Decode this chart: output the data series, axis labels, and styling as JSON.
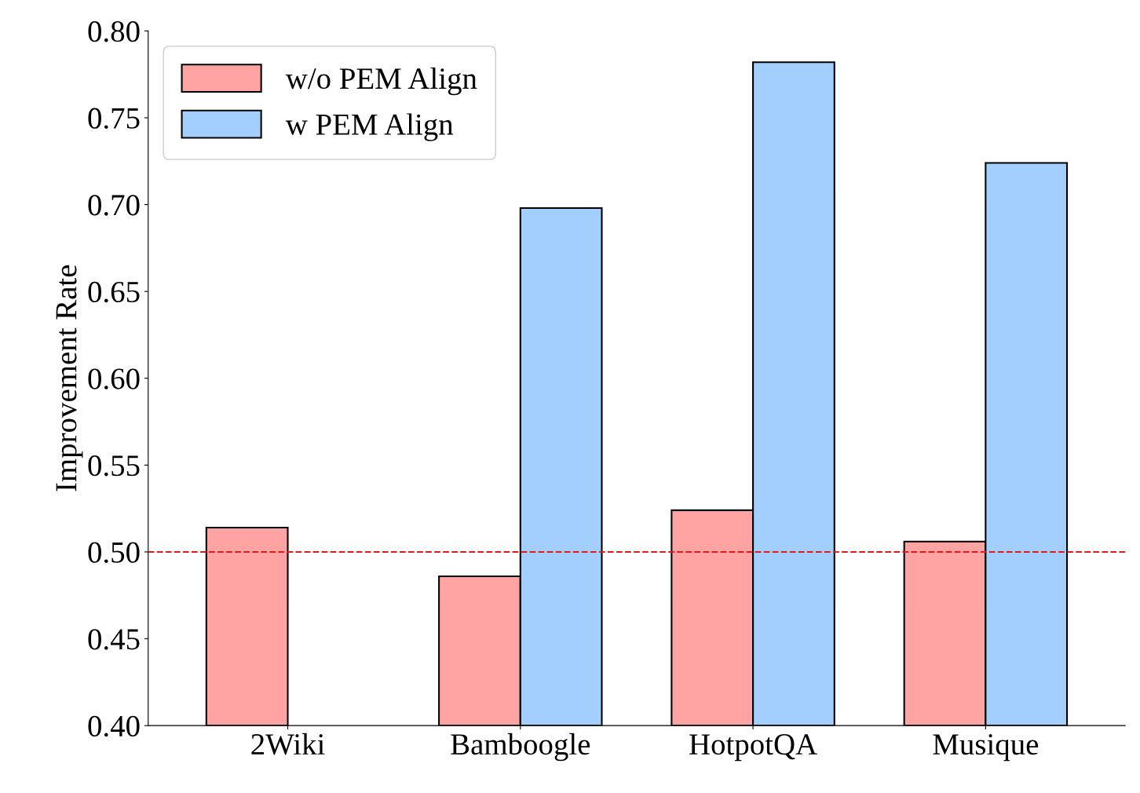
{
  "chart_data": {
    "type": "bar",
    "ylabel": "Improvement Rate",
    "categories": [
      "2Wiki",
      "Bamboogle",
      "HotpotQA",
      "Musique"
    ],
    "series": [
      {
        "name": "w/o PEM Align",
        "color": "#ffa3a3",
        "values": [
          0.514,
          0.486,
          0.524,
          0.506
        ]
      },
      {
        "name": "w PEM Align",
        "color": "#a3cfff",
        "values": [
          null,
          0.698,
          0.782,
          0.724
        ]
      }
    ],
    "ylim": [
      0.4,
      0.8
    ],
    "yticks": [
      {
        "value": 0.4,
        "label": "0.40"
      },
      {
        "value": 0.45,
        "label": "0.45"
      },
      {
        "value": 0.5,
        "label": "0.50"
      },
      {
        "value": 0.55,
        "label": "0.55"
      },
      {
        "value": 0.6,
        "label": "0.60"
      },
      {
        "value": 0.65,
        "label": "0.65"
      },
      {
        "value": 0.7,
        "label": "0.70"
      },
      {
        "value": 0.75,
        "label": "0.75"
      },
      {
        "value": 0.8,
        "label": "0.80"
      }
    ],
    "ref_lines": [
      {
        "axis": "y",
        "value": 0.5,
        "color": "#e31a1c",
        "line_style": "dashed"
      }
    ],
    "legend": "top left",
    "grid": false
  }
}
